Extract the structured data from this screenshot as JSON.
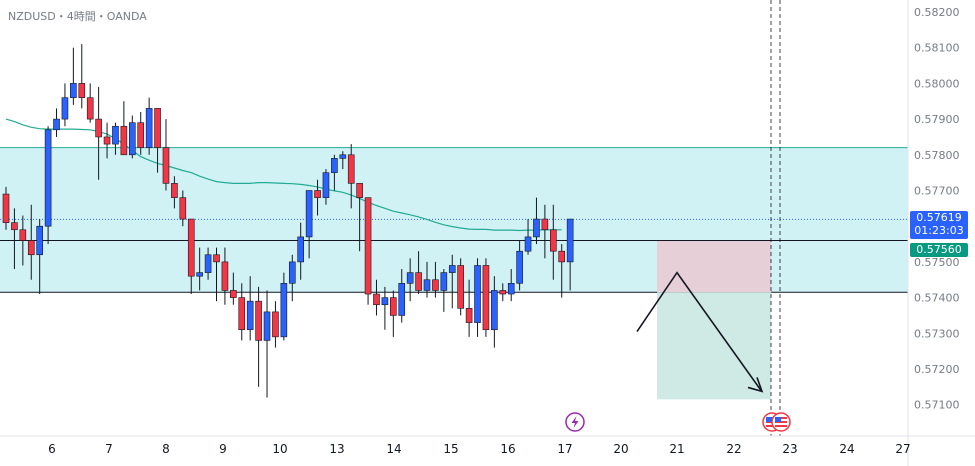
{
  "header": {
    "title": "NZDUSD・4時間・OANDA"
  },
  "price_labels": {
    "current_price": "0.57619",
    "countdown": "01:23:03",
    "level_price": "0.57560",
    "current_color": "#2962ff",
    "level_color": "#089981"
  },
  "event_icons": [
    "lightning-icon",
    "us-flag-icon"
  ],
  "chart_data": {
    "type": "candlestick",
    "title": "NZDUSD・4時間・OANDA",
    "xlabel": "",
    "ylabel": "",
    "ylim": [
      0.5705,
      0.5823
    ],
    "y_ticks": [
      "0.58200",
      "0.58100",
      "0.58000",
      "0.57900",
      "0.57800",
      "0.57700",
      "0.57600",
      "0.57500",
      "0.57400",
      "0.57300",
      "0.57200",
      "0.57100"
    ],
    "x_ticks": [
      "6",
      "7",
      "8",
      "9",
      "10",
      "13",
      "14",
      "15",
      "16",
      "17",
      "20",
      "21",
      "22",
      "23",
      "24",
      "27"
    ],
    "grid": false,
    "colors": {
      "up": "#2962ff",
      "down": "#f23645",
      "ma": "#22ab94",
      "zone": "#d1f2f4",
      "zone_border": "#22ab94",
      "stop_zone": "#e6cfd6",
      "target_zone": "#cfe9e4"
    },
    "candles_ohlc": [
      [
        0.5769,
        0.5771,
        0.5759,
        0.5761
      ],
      [
        0.5761,
        0.5765,
        0.5748,
        0.5759
      ],
      [
        0.5759,
        0.5763,
        0.5749,
        0.5756
      ],
      [
        0.5756,
        0.5766,
        0.5745,
        0.5752
      ],
      [
        0.5752,
        0.5762,
        0.5741,
        0.576
      ],
      [
        0.576,
        0.5788,
        0.5755,
        0.5787
      ],
      [
        0.5787,
        0.5793,
        0.5785,
        0.579
      ],
      [
        0.579,
        0.58,
        0.5788,
        0.5796
      ],
      [
        0.5796,
        0.581,
        0.5794,
        0.58
      ],
      [
        0.58,
        0.5811,
        0.5793,
        0.5796
      ],
      [
        0.5796,
        0.58,
        0.5789,
        0.579
      ],
      [
        0.579,
        0.5799,
        0.5773,
        0.5785
      ],
      [
        0.5785,
        0.5789,
        0.5779,
        0.5783
      ],
      [
        0.5783,
        0.5789,
        0.578,
        0.5788
      ],
      [
        0.5788,
        0.5795,
        0.578,
        0.578
      ],
      [
        0.578,
        0.5791,
        0.5779,
        0.5789
      ],
      [
        0.5789,
        0.5792,
        0.578,
        0.5782
      ],
      [
        0.5782,
        0.5796,
        0.578,
        0.5793
      ],
      [
        0.5793,
        0.5793,
        0.5775,
        0.5782
      ],
      [
        0.5782,
        0.579,
        0.577,
        0.5772
      ],
      [
        0.5772,
        0.5774,
        0.5765,
        0.5768
      ],
      [
        0.5768,
        0.577,
        0.576,
        0.5762
      ],
      [
        0.5762,
        0.5762,
        0.5741,
        0.5746
      ],
      [
        0.5746,
        0.5754,
        0.5742,
        0.5747
      ],
      [
        0.5747,
        0.5754,
        0.5745,
        0.5752
      ],
      [
        0.5752,
        0.5754,
        0.5739,
        0.575
      ],
      [
        0.575,
        0.5754,
        0.5738,
        0.5742
      ],
      [
        0.5742,
        0.5747,
        0.5738,
        0.574
      ],
      [
        0.574,
        0.5744,
        0.5728,
        0.5731
      ],
      [
        0.5731,
        0.5746,
        0.5728,
        0.5739
      ],
      [
        0.5739,
        0.5743,
        0.5715,
        0.5728
      ],
      [
        0.5728,
        0.5742,
        0.5712,
        0.5736
      ],
      [
        0.5736,
        0.5739,
        0.5726,
        0.5729
      ],
      [
        0.5729,
        0.5747,
        0.5728,
        0.5744
      ],
      [
        0.5744,
        0.5752,
        0.5739,
        0.575
      ],
      [
        0.575,
        0.5761,
        0.5745,
        0.5757
      ],
      [
        0.5757,
        0.5767,
        0.5751,
        0.577
      ],
      [
        0.577,
        0.5773,
        0.5763,
        0.5768
      ],
      [
        0.5768,
        0.5776,
        0.5766,
        0.5775
      ],
      [
        0.5775,
        0.578,
        0.577,
        0.5779
      ],
      [
        0.5779,
        0.5781,
        0.5776,
        0.578
      ],
      [
        0.578,
        0.5783,
        0.5765,
        0.5772
      ],
      [
        0.5772,
        0.5772,
        0.5753,
        0.5768
      ],
      [
        0.5768,
        0.5768,
        0.5738,
        0.5741
      ],
      [
        0.5741,
        0.5745,
        0.5735,
        0.5738
      ],
      [
        0.5738,
        0.5743,
        0.5731,
        0.574
      ],
      [
        0.574,
        0.5742,
        0.5729,
        0.5735
      ],
      [
        0.5735,
        0.5748,
        0.5733,
        0.5744
      ],
      [
        0.5744,
        0.5751,
        0.5739,
        0.5747
      ],
      [
        0.5747,
        0.5753,
        0.5741,
        0.5742
      ],
      [
        0.5742,
        0.575,
        0.574,
        0.5745
      ],
      [
        0.5745,
        0.575,
        0.574,
        0.5742
      ],
      [
        0.5742,
        0.5748,
        0.5736,
        0.5747
      ],
      [
        0.5747,
        0.5752,
        0.5737,
        0.5749
      ],
      [
        0.5749,
        0.5751,
        0.5735,
        0.5737
      ],
      [
        0.5737,
        0.5745,
        0.5729,
        0.5733
      ],
      [
        0.5733,
        0.5751,
        0.5729,
        0.5749
      ],
      [
        0.5749,
        0.5751,
        0.5729,
        0.5731
      ],
      [
        0.5731,
        0.5746,
        0.5726,
        0.5742
      ],
      [
        0.5742,
        0.5744,
        0.5739,
        0.5741
      ],
      [
        0.5741,
        0.5748,
        0.5739,
        0.5744
      ],
      [
        0.5744,
        0.5756,
        0.5742,
        0.5753
      ],
      [
        0.5753,
        0.5762,
        0.5752,
        0.5757
      ],
      [
        0.5757,
        0.5768,
        0.5755,
        0.5762
      ],
      [
        0.5762,
        0.5766,
        0.5751,
        0.5759
      ],
      [
        0.5759,
        0.5766,
        0.5745,
        0.5753
      ],
      [
        0.5753,
        0.5755,
        0.574,
        0.575
      ],
      [
        0.575,
        0.5761,
        0.5742,
        0.5762
      ]
    ],
    "moving_average": [
      0.579,
      0.57893,
      0.57884,
      0.57877,
      0.57873,
      0.57872,
      0.57872,
      0.57872,
      0.57872,
      0.57871,
      0.5787,
      0.57865,
      0.57858,
      0.57845,
      0.5783,
      0.57812,
      0.57795,
      0.57785,
      0.57776,
      0.5777,
      0.57763,
      0.57756,
      0.5775,
      0.5774,
      0.57732,
      0.57725,
      0.57722,
      0.5772,
      0.5772,
      0.5772,
      0.57722,
      0.57722,
      0.57721,
      0.5772,
      0.57719,
      0.57717,
      0.57714,
      0.5771,
      0.57704,
      0.57699,
      0.57695,
      0.57687,
      0.57678,
      0.57667,
      0.57658,
      0.5765,
      0.57642,
      0.57637,
      0.57632,
      0.57626,
      0.57619,
      0.57611,
      0.57604,
      0.57599,
      0.57595,
      0.57592,
      0.57591,
      0.57591,
      0.57589,
      0.57589,
      0.57589,
      0.57588,
      0.57589,
      0.57589,
      0.5759,
      0.5759,
      0.5759
    ],
    "zone_levels": {
      "upper": 0.5782,
      "lower": 0.57415
    },
    "level_line": 0.5756,
    "current_price_line": 0.57619,
    "position_tool": {
      "entry": 0.5756,
      "stop": 0.57415,
      "target": 0.57115
    },
    "projection_path": [
      0.57305,
      0.5747,
      0.5714
    ]
  }
}
